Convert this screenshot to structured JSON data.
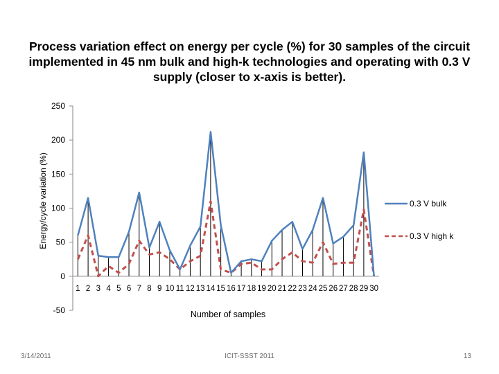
{
  "slide": {
    "title": "Process variation effect on energy per cycle (%) for 30 samples of the circuit implemented in 45 nm bulk and high-k technologies and operating with 0.3 V supply (closer to x-axis is better).",
    "footer_date": "3/14/2011",
    "footer_center": "ICIT-SSST 2011",
    "page_number": "13"
  },
  "chart_data": {
    "type": "line",
    "title": "",
    "xlabel": "Number of samples",
    "ylabel": "Energy/cycle variation (%)",
    "ylim": [
      -50,
      250
    ],
    "yticks": [
      -50,
      0,
      50,
      100,
      150,
      200,
      250
    ],
    "categories": [
      "1",
      "2",
      "3",
      "4",
      "5",
      "6",
      "7",
      "8",
      "9",
      "10",
      "11",
      "12",
      "13",
      "14",
      "15",
      "16",
      "17",
      "18",
      "19",
      "20",
      "21",
      "22",
      "23",
      "24",
      "25",
      "26",
      "27",
      "28",
      "29",
      "30"
    ],
    "grid": false,
    "drop_lines": true,
    "legend_position": "right",
    "series": [
      {
        "name": "0.3 V bulk",
        "color": "#4f81bd",
        "dash": "solid",
        "values": [
          60,
          115,
          30,
          28,
          28,
          65,
          123,
          42,
          80,
          38,
          10,
          45,
          73,
          212,
          75,
          5,
          22,
          25,
          22,
          52,
          68,
          80,
          40,
          68,
          115,
          48,
          58,
          75,
          182,
          0
        ]
      },
      {
        "name": "0.3 V high k",
        "color": "#c0504d",
        "dash": "dashed",
        "values": [
          25,
          60,
          0,
          15,
          5,
          18,
          52,
          32,
          35,
          25,
          10,
          22,
          30,
          110,
          10,
          5,
          18,
          20,
          10,
          10,
          25,
          35,
          22,
          20,
          50,
          18,
          20,
          20,
          98,
          0
        ]
      }
    ]
  }
}
